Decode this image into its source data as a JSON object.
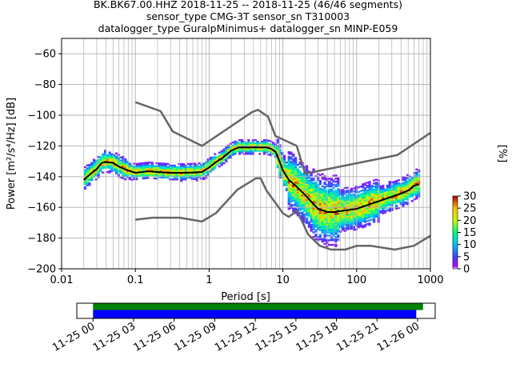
{
  "header": {
    "line1": "BK.BK67.00.HHZ   2018-11-25 -- 2018-11-25  (46/46 segments)",
    "line2": "sensor_type CMG-3T sensor_sn T310003",
    "line3": "datalogger_type GuralpMinimus+ datalogger_sn MINP-E059"
  },
  "chart_data": {
    "type": "heatmap",
    "xlabel": "Period [s]",
    "ylabel": "Power [m²/s⁴/Hz] [dB]",
    "xscale": "log",
    "xlim": [
      0.01,
      1000
    ],
    "ylim": [
      -200,
      -50
    ],
    "xticks": [
      0.01,
      0.1,
      1,
      10,
      100,
      1000
    ],
    "xtick_labels": [
      "0.01",
      "0.1",
      "1",
      "10",
      "100",
      "1000"
    ],
    "yticks": [
      -60,
      -80,
      -100,
      -120,
      -140,
      -160,
      -180,
      -200
    ],
    "ytick_labels": [
      "−60",
      "−80",
      "−100",
      "−120",
      "−140",
      "−160",
      "−180",
      "−200"
    ],
    "grid": true,
    "series": [
      {
        "role": "noise-model-high",
        "color": "#666666",
        "x": [
          0.1,
          0.22,
          0.32,
          0.8,
          3.8,
          4.6,
          6.3,
          7.9,
          15.4,
          20,
          354.8,
          1000
        ],
        "y": [
          -91.5,
          -97.4,
          -110.5,
          -120,
          -98,
          -96.5,
          -101,
          -113.5,
          -120,
          -138,
          -126,
          -111.5
        ]
      },
      {
        "role": "noise-model-low",
        "color": "#666666",
        "x": [
          0.1,
          0.17,
          0.4,
          0.8,
          1.24,
          2.4,
          4.3,
          5,
          6,
          10,
          12,
          15.6,
          21.9,
          31.6,
          45,
          70,
          101,
          154,
          328,
          600,
          1000
        ],
        "y": [
          -168,
          -166.7,
          -166.7,
          -169.2,
          -163.7,
          -148.6,
          -141.1,
          -141.1,
          -149,
          -163.8,
          -166.2,
          -162.1,
          -177.5,
          -185,
          -187.5,
          -187.5,
          -185,
          -185,
          -187.5,
          -185,
          -178.5
        ]
      },
      {
        "role": "mode",
        "color": "#000000",
        "x": [
          0.02,
          0.025,
          0.03,
          0.035,
          0.04,
          0.05,
          0.06,
          0.08,
          0.1,
          0.15,
          0.2,
          0.3,
          0.5,
          0.8,
          1.0,
          1.2,
          1.5,
          2,
          2.5,
          3,
          4,
          5,
          6,
          7,
          8,
          9,
          10,
          12,
          15,
          20,
          25,
          30,
          40,
          50,
          70,
          100,
          150,
          200,
          300,
          400,
          500,
          600,
          700
        ],
        "y": [
          -142,
          -138,
          -135,
          -131,
          -130.5,
          -131,
          -133.5,
          -136,
          -137.5,
          -136.5,
          -137,
          -137.5,
          -137.5,
          -137,
          -134,
          -131,
          -128,
          -123,
          -121,
          -121,
          -121,
          -121,
          -121,
          -122,
          -124,
          -130,
          -136,
          -142,
          -146,
          -152,
          -157,
          -161,
          -163,
          -163,
          -162,
          -161,
          -158,
          -156,
          -153,
          -151,
          -149,
          -146,
          -145
        ]
      }
    ],
    "colorbar": {
      "label": "[%]",
      "range": [
        0,
        30
      ],
      "ticks": [
        0,
        5,
        10,
        15,
        20,
        25,
        30
      ],
      "tick_labels": [
        "0",
        "5",
        "10",
        "15",
        "20",
        "25",
        "30"
      ]
    }
  },
  "timeline": {
    "tick_labels": [
      "11-25 00",
      "11-25 03",
      "11-25 06",
      "11-25 09",
      "11-25 12",
      "11-25 15",
      "11-25 18",
      "11-25 21",
      "11-26 00"
    ],
    "range_hours": [
      -1.2,
      25.3
    ],
    "green_bar_hours": [
      0,
      24.4
    ],
    "blue_bar_hours": [
      0,
      23.9
    ],
    "green_color": "#008000",
    "blue_color": "#0000ff"
  }
}
